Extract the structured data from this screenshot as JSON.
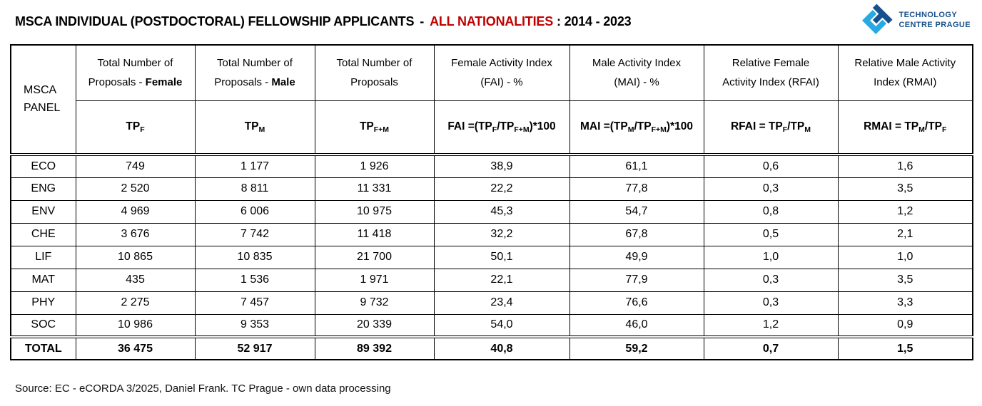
{
  "title": {
    "main": "MSCA INDIVIDUAL (POSTDOCTORAL) FELLOWSHIP APPLICANTS",
    "separator": "-",
    "highlight": "ALL NATIONALITIES",
    "period": ": 2014 - 2023"
  },
  "colors": {
    "title_accent": "#C00000",
    "logo_light_blue": "#29A9E1",
    "logo_dark_blue": "#17508C",
    "logo_text": "#17508C"
  },
  "logo": {
    "line1": "TECHNOLOGY",
    "line2": "CENTRE PRAGUE"
  },
  "header": {
    "panel": "MSCA PANEL",
    "tpf_line1": "Total Number of",
    "tpf_line2_pre": "Proposals - ",
    "tpf_line2_bold": "Female",
    "tpm_line1": "Total Number of",
    "tpm_line2_pre": "Proposals - ",
    "tpm_line2_bold": "Male",
    "tpfm_line1": "Total Number of",
    "tpfm_line2": "Proposals",
    "fai_line1": "Female Activity Index",
    "fai_line2": "(FAI) - %",
    "mai_line1": "Male Activity Index",
    "mai_line2": "(MAI) - %",
    "rfai_line1": "Relative Female",
    "rfai_line2": "Activity Index (RFAI)",
    "rmai_line1": "Relative Male Activity",
    "rmai_line2": "Index (RMAI)"
  },
  "symbols": {
    "tpf": [
      "TP",
      "F"
    ],
    "tpm": [
      "TP",
      "M"
    ],
    "tpfm": [
      "TP",
      "F+M"
    ],
    "fai": [
      "FAI =(TP",
      "F",
      "/TP",
      "F+M",
      ")*100"
    ],
    "mai": [
      "MAI =(TP",
      "M",
      "/TP",
      "F+M",
      ")*100"
    ],
    "rfai": [
      "RFAI = TP",
      "F",
      "/TP",
      "M"
    ],
    "rmai": [
      "RMAI = TP",
      "M",
      "/TP",
      "F"
    ]
  },
  "rows": [
    {
      "panel": "ECO",
      "tpf": "749",
      "tpm": "1 177",
      "tpfm": "1 926",
      "fai": "38,9",
      "mai": "61,1",
      "rfai": "0,6",
      "rmai": "1,6"
    },
    {
      "panel": "ENG",
      "tpf": "2 520",
      "tpm": "8 811",
      "tpfm": "11 331",
      "fai": "22,2",
      "mai": "77,8",
      "rfai": "0,3",
      "rmai": "3,5"
    },
    {
      "panel": "ENV",
      "tpf": "4 969",
      "tpm": "6 006",
      "tpfm": "10 975",
      "fai": "45,3",
      "mai": "54,7",
      "rfai": "0,8",
      "rmai": "1,2"
    },
    {
      "panel": "CHE",
      "tpf": "3 676",
      "tpm": "7 742",
      "tpfm": "11 418",
      "fai": "32,2",
      "mai": "67,8",
      "rfai": "0,5",
      "rmai": "2,1"
    },
    {
      "panel": "LIF",
      "tpf": "10 865",
      "tpm": "10 835",
      "tpfm": "21 700",
      "fai": "50,1",
      "mai": "49,9",
      "rfai": "1,0",
      "rmai": "1,0"
    },
    {
      "panel": "MAT",
      "tpf": "435",
      "tpm": "1 536",
      "tpfm": "1 971",
      "fai": "22,1",
      "mai": "77,9",
      "rfai": "0,3",
      "rmai": "3,5"
    },
    {
      "panel": "PHY",
      "tpf": "2 275",
      "tpm": "7 457",
      "tpfm": "9 732",
      "fai": "23,4",
      "mai": "76,6",
      "rfai": "0,3",
      "rmai": "3,3"
    },
    {
      "panel": "SOC",
      "tpf": "10 986",
      "tpm": "9 353",
      "tpfm": "20 339",
      "fai": "54,0",
      "mai": "46,0",
      "rfai": "1,2",
      "rmai": "0,9"
    }
  ],
  "total": {
    "panel": "TOTAL",
    "tpf": "36 475",
    "tpm": "52 917",
    "tpfm": "89 392",
    "fai": "40,8",
    "mai": "59,2",
    "rfai": "0,7",
    "rmai": "1,5"
  },
  "source": "Source: EC - eCORDA 3/2025, Daniel Frank. TC Prague - own data processing",
  "chart_data": {
    "type": "table",
    "title": "MSCA INDIVIDUAL (POSTDOCTORAL) FELLOWSHIP APPLICANTS - ALL NATIONALITIES : 2014 - 2023",
    "columns": [
      "MSCA PANEL",
      "TPF (Female proposals)",
      "TPM (Male proposals)",
      "TPF+M (Total proposals)",
      "FAI % = (TPF/TPF+M)*100",
      "MAI % = (TPM/TPF+M)*100",
      "RFAI = TPF/TPM",
      "RMAI = TPM/TPF"
    ],
    "rows": [
      [
        "ECO",
        749,
        1177,
        1926,
        38.9,
        61.1,
        0.6,
        1.6
      ],
      [
        "ENG",
        2520,
        8811,
        11331,
        22.2,
        77.8,
        0.3,
        3.5
      ],
      [
        "ENV",
        4969,
        6006,
        10975,
        45.3,
        54.7,
        0.8,
        1.2
      ],
      [
        "CHE",
        3676,
        7742,
        11418,
        32.2,
        67.8,
        0.5,
        2.1
      ],
      [
        "LIF",
        10865,
        10835,
        21700,
        50.1,
        49.9,
        1.0,
        1.0
      ],
      [
        "MAT",
        435,
        1536,
        1971,
        22.1,
        77.9,
        0.3,
        3.5
      ],
      [
        "PHY",
        2275,
        7457,
        9732,
        23.4,
        76.6,
        0.3,
        3.3
      ],
      [
        "SOC",
        10986,
        9353,
        20339,
        54.0,
        46.0,
        1.2,
        0.9
      ],
      [
        "TOTAL",
        36475,
        52917,
        89392,
        40.8,
        59.2,
        0.7,
        1.5
      ]
    ],
    "source": "Source: EC - eCORDA 3/2025, Daniel Frank. TC Prague - own data processing"
  }
}
